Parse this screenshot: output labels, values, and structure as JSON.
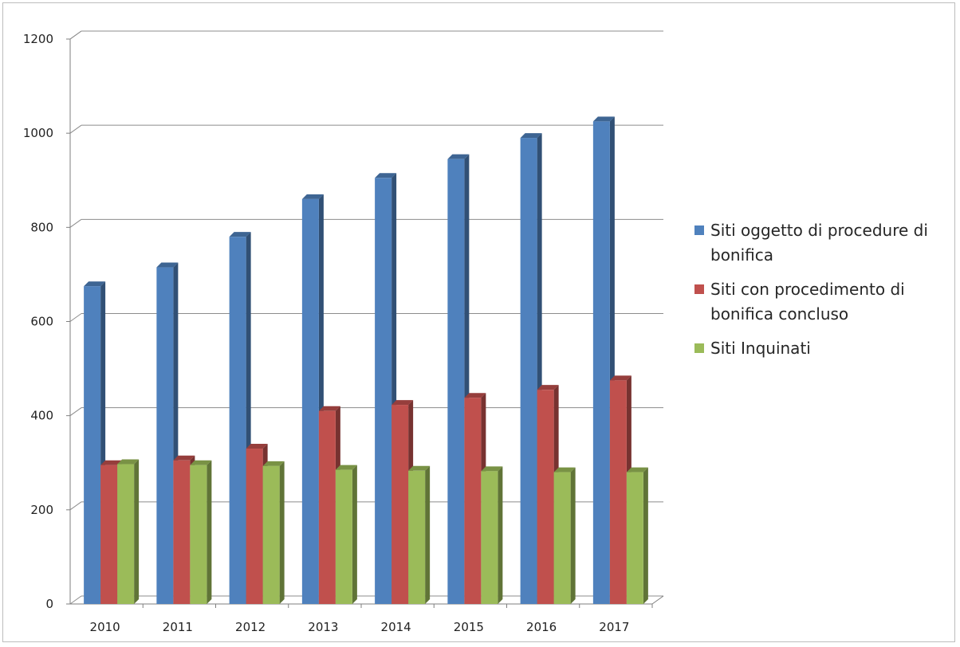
{
  "chart_data": {
    "type": "bar",
    "title": "",
    "xlabel": "",
    "ylabel": "",
    "categories": [
      "2010",
      "2011",
      "2012",
      "2013",
      "2014",
      "2015",
      "2016",
      "2017"
    ],
    "ylim": [
      0,
      1200
    ],
    "yticks": [
      "0",
      "200",
      "400",
      "600",
      "800",
      "1000",
      "1200"
    ],
    "grid": true,
    "legend_position": "right",
    "series": [
      {
        "name": "Siti oggetto di procedure di bonifica",
        "color": "#4f81bd",
        "values": [
          675,
          715,
          780,
          860,
          905,
          945,
          990,
          1025
        ]
      },
      {
        "name": "Siti con procedimento di bonifica concluso",
        "color": "#c0504d",
        "values": [
          295,
          305,
          330,
          410,
          423,
          438,
          455,
          475
        ]
      },
      {
        "name": "Siti Inquinati",
        "color": "#9bbb59",
        "values": [
          297,
          295,
          293,
          285,
          283,
          282,
          280,
          280
        ]
      }
    ]
  }
}
